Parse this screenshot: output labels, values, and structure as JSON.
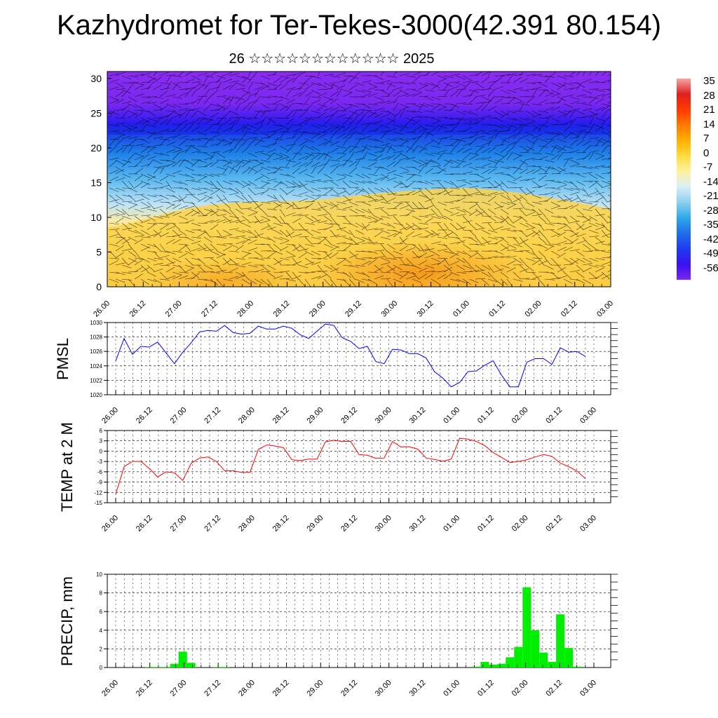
{
  "title": "Kazhydromet for Ter-Tekes-3000(42.391 80.154)",
  "subtitle": "26 ☆☆☆☆☆☆☆☆☆☆☆☆ 2025",
  "x_ticks": [
    "26.00",
    "26.12",
    "27.00",
    "27.12",
    "28.00",
    "28.12",
    "29.00",
    "29.12",
    "30.00",
    "30.12",
    "01.00",
    "01.12",
    "02.00",
    "02.12",
    "03.00"
  ],
  "colorbar": {
    "labels": [
      "35",
      "28",
      "21",
      "14",
      "7",
      "0",
      "-7",
      "-14",
      "-21",
      "-28",
      "-35",
      "-42",
      "-49",
      "-56"
    ],
    "stops": [
      "#f4a8a8",
      "#e02020",
      "#ff3a00",
      "#ff7a00",
      "#ffb000",
      "#ffdc40",
      "#fff2a0",
      "#d8eef8",
      "#8cd0f0",
      "#2ea8e8",
      "#1e6ee8",
      "#1e3cf0",
      "#3a10f0",
      "#7a28f0"
    ]
  },
  "chart_data": [
    {
      "type": "heatmap",
      "title": "",
      "xlabel": "",
      "ylabel": "",
      "ylim": [
        0,
        31
      ],
      "y_ticks": [
        0,
        5,
        10,
        15,
        20,
        25,
        30
      ],
      "x_ticks": [
        "26.00",
        "26.12",
        "27.00",
        "27.12",
        "28.00",
        "28.12",
        "29.00",
        "29.12",
        "30.00",
        "30.12",
        "01.00",
        "01.12",
        "02.00",
        "02.12",
        "03.00"
      ],
      "value_range": [
        -56,
        35
      ],
      "colors": {
        "warm": "#f9a020",
        "cold": "#8a2cf0",
        "band": "#1a22e6"
      }
    },
    {
      "type": "line",
      "ylabel": "PMSL",
      "ylim": [
        1020,
        1030
      ],
      "y_ticks": [
        1020,
        1022,
        1024,
        1026,
        1028,
        1030
      ],
      "color": "#0000ff",
      "x_ticks": [
        "26.00",
        "26.12",
        "27.00",
        "27.12",
        "28.00",
        "28.12",
        "29.00",
        "29.12",
        "30.00",
        "30.12",
        "01.00",
        "01.12",
        "02.00",
        "02.12",
        "03.00"
      ],
      "values": [
        1024.7,
        1027.8,
        1025.6,
        1026.7,
        1026.6,
        1027.3,
        1025.8,
        1024.3,
        1025.9,
        1027.2,
        1028.7,
        1028.9,
        1028.8,
        1029.6,
        1028.6,
        1028.4,
        1028.5,
        1029.5,
        1029.1,
        1029.1,
        1029.5,
        1029.2,
        1028.3,
        1027.8,
        1028.8,
        1029.8,
        1029.6,
        1027.9,
        1027.4,
        1026.4,
        1026.7,
        1024.6,
        1024.3,
        1026.3,
        1026.2,
        1025.7,
        1025.7,
        1025.1,
        1023.2,
        1022.3,
        1021.1,
        1021.7,
        1023.2,
        1023.3,
        1024.1,
        1024.7,
        1022.7,
        1021.1,
        1021.1,
        1024.5,
        1025.0,
        1025.0,
        1024.2,
        1026.5,
        1025.9,
        1026.0,
        1025.3
      ]
    },
    {
      "type": "line",
      "ylabel": "TEMP at 2 M",
      "ylim": [
        -15,
        6
      ],
      "y_ticks": [
        -15,
        -12,
        -9,
        -6,
        -3,
        0,
        3,
        6
      ],
      "color": "#ff0000",
      "x_ticks": [
        "26.00",
        "26.12",
        "27.00",
        "27.12",
        "28.00",
        "28.12",
        "29.00",
        "29.12",
        "30.00",
        "30.12",
        "01.00",
        "01.12",
        "02.00",
        "02.12",
        "03.00"
      ],
      "values": [
        -12.5,
        -4.5,
        -3.0,
        -3.0,
        -5.0,
        -7.5,
        -6.0,
        -6.3,
        -8.5,
        -3.5,
        -2.0,
        -1.7,
        -3.0,
        -5.7,
        -5.7,
        -6.2,
        -6.2,
        0.5,
        1.8,
        1.5,
        1.0,
        -2.5,
        -2.7,
        -2.3,
        -2.3,
        2.7,
        3.2,
        2.8,
        2.9,
        -1.0,
        -1.2,
        -2.1,
        -2.0,
        2.8,
        1.2,
        1.3,
        0.6,
        -2.0,
        -2.4,
        -2.9,
        -2.3,
        3.7,
        3.5,
        2.8,
        1.6,
        -0.4,
        -1.8,
        -3.3,
        -3.0,
        -2.5,
        -1.7,
        -1.0,
        -1.5,
        -3.5,
        -4.5,
        -5.8,
        -8.0
      ]
    },
    {
      "type": "bar",
      "ylabel": "PRECIP, mm",
      "ylim": [
        0,
        10
      ],
      "y_ticks": [
        0,
        2,
        4,
        6,
        8,
        10
      ],
      "color": "#00ee00",
      "x_ticks": [
        "26.00",
        "26.12",
        "27.00",
        "27.12",
        "28.00",
        "28.12",
        "29.00",
        "29.12",
        "30.00",
        "30.12",
        "01.00",
        "01.12",
        "02.00",
        "02.12",
        "03.00"
      ],
      "values": [
        0,
        0,
        0,
        0,
        0.05,
        0.05,
        0.05,
        0.4,
        1.7,
        0.5,
        0,
        0,
        0.05,
        0.05,
        0,
        0,
        0,
        0,
        0,
        0,
        0,
        0,
        0,
        0,
        0,
        0,
        0,
        0,
        0,
        0,
        0,
        0,
        0,
        0,
        0,
        0,
        0,
        0,
        0,
        0,
        0,
        0,
        0,
        0.1,
        0.6,
        0.3,
        0.4,
        1.1,
        2.2,
        8.6,
        4.0,
        1.6,
        0.6,
        5.7,
        2.1,
        0.1,
        0
      ]
    }
  ]
}
